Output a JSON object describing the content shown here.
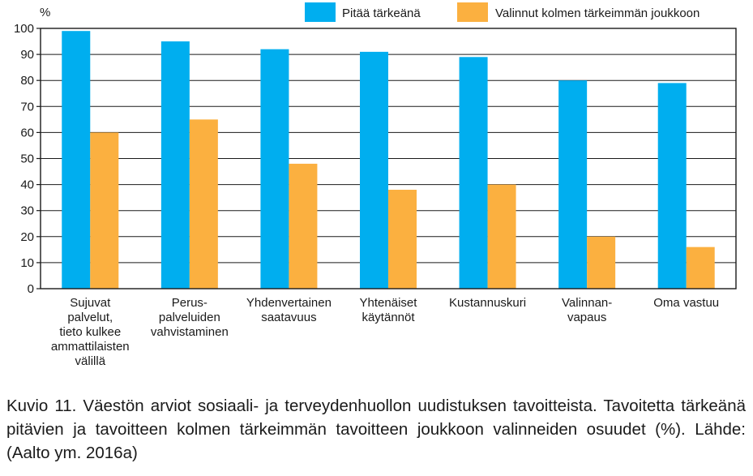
{
  "chart_data": {
    "type": "bar",
    "ylabel": "%",
    "ylim": [
      0,
      100
    ],
    "yticks": [
      0,
      10,
      20,
      30,
      40,
      50,
      60,
      70,
      80,
      90,
      100
    ],
    "grid": true,
    "legend_position": "top-right",
    "categories": [
      "Sujuvat palvelut, tieto kulkee ammattilaisten välillä",
      "Perus-palveluiden vahvistaminen",
      "Yhdenvertainen saatavuus",
      "Yhtenäiset käytännöt",
      "Kustannuskuri",
      "Valinnan-vapaus",
      "Oma vastuu"
    ],
    "category_lines": [
      [
        "Sujuvat",
        "palvelut,",
        "tieto kulkee",
        "ammattilaisten",
        "välillä"
      ],
      [
        "Perus-",
        "palveluiden",
        "vahvistaminen"
      ],
      [
        "Yhdenvertainen",
        "saatavuus"
      ],
      [
        "Yhtenäiset",
        "käytännöt"
      ],
      [
        "Kustannuskuri"
      ],
      [
        "Valinnan-",
        "vapaus"
      ],
      [
        "Oma vastuu"
      ]
    ],
    "series": [
      {
        "name": "Pitää tärkeänä",
        "color": "#00aeef",
        "values": [
          99,
          95,
          92,
          91,
          89,
          80,
          79
        ]
      },
      {
        "name": "Valinnut kolmen tärkeimmän joukkoon",
        "color": "#fbb040",
        "values": [
          60,
          65,
          48,
          38,
          40,
          20,
          16
        ]
      }
    ]
  },
  "caption": "Kuvio 11. Väestön arviot sosiaali- ja terveydenhuollon uudistuksen tavoitteista. Tavoitetta tärkeänä pitävien ja tavoitteen kolmen tärkeimmän tavoitteen joukkoon valinneiden osuudet (%). Lähde: (Aalto ym. 2016a)"
}
